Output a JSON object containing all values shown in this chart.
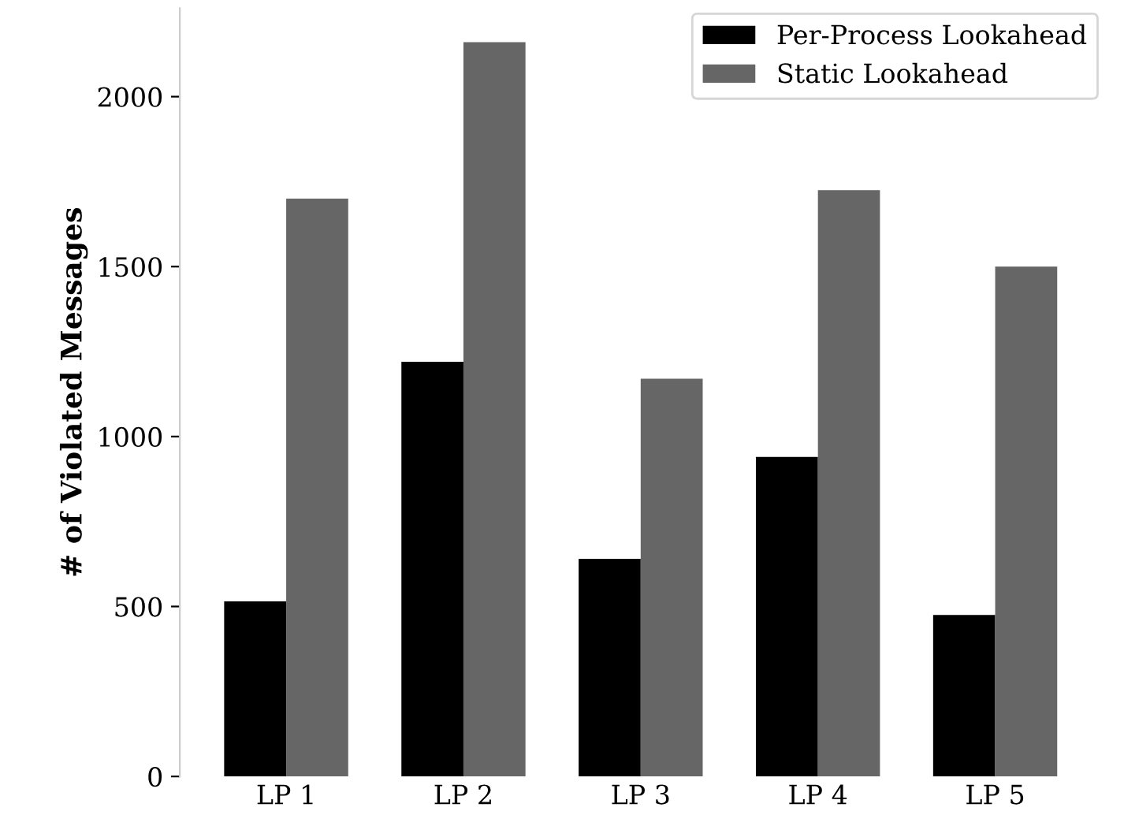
{
  "chart_data": {
    "type": "bar",
    "ylabel": "# of Violated Messages",
    "categories": [
      "LP 1",
      "LP 2",
      "LP 3",
      "LP 4",
      "LP 5"
    ],
    "series": [
      {
        "name": "Per-Process Lookahead",
        "color": "#000000",
        "values": [
          515,
          1220,
          640,
          940,
          475
        ]
      },
      {
        "name": "Static Lookahead",
        "color": "#666666",
        "values": [
          1700,
          2160,
          1170,
          1725,
          1500
        ]
      }
    ],
    "ylim": [
      0,
      2260
    ],
    "yticks": [
      0,
      500,
      1000,
      1500,
      2000
    ],
    "grid": false,
    "legend": "top right"
  }
}
